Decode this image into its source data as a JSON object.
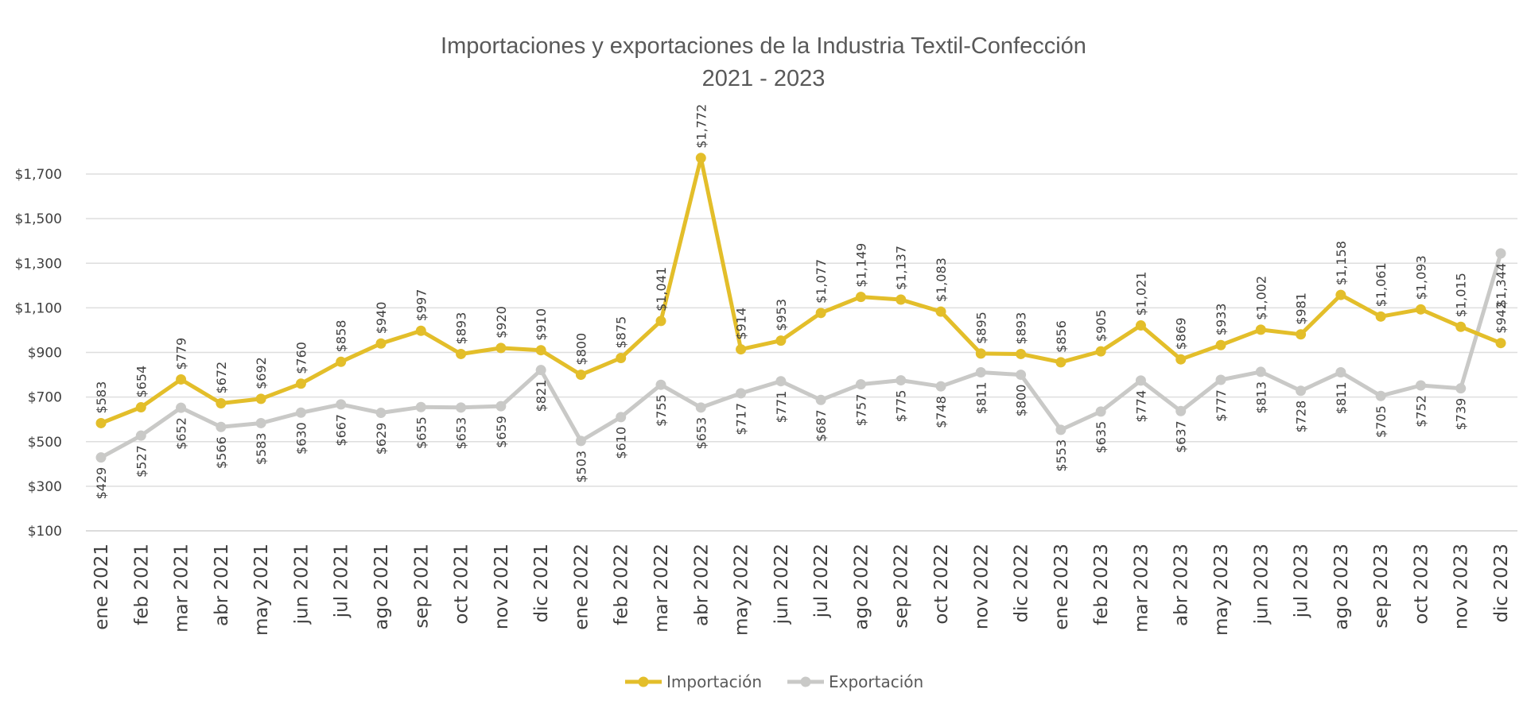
{
  "chart_data": {
    "type": "line",
    "title": "Importaciones y exportaciones de la Industria Textil-Confección",
    "subtitle": "2021 - 2023",
    "xlabel": "",
    "ylabel": "",
    "ylim": [
      100,
      1900
    ],
    "yticks": [
      "$100",
      "$300",
      "$500",
      "$700",
      "$900",
      "$1,100",
      "$1,300",
      "$1,500",
      "$1,700"
    ],
    "ytick_values": [
      100,
      300,
      500,
      700,
      900,
      1100,
      1300,
      1500,
      1700
    ],
    "grid": true,
    "legend_position": "bottom",
    "categories": [
      "ene 2021",
      "feb 2021",
      "mar 2021",
      "abr 2021",
      "may 2021",
      "jun 2021",
      "jul 2021",
      "ago 2021",
      "sep 2021",
      "oct 2021",
      "nov 2021",
      "dic 2021",
      "ene 2022",
      "feb 2022",
      "mar 2022",
      "abr 2022",
      "may 2022",
      "jun 2022",
      "jul 2022",
      "ago 2022",
      "sep 2022",
      "oct 2022",
      "nov 2022",
      "dic 2022",
      "ene 2023",
      "feb 2023",
      "mar 2023",
      "abr 2023",
      "may 2023",
      "jun 2023",
      "jul 2023",
      "ago 2023",
      "sep 2023",
      "oct 2023",
      "nov 2023",
      "dic 2023"
    ],
    "series": [
      {
        "name": "Importación",
        "color": "#E3BE2A",
        "label_position": "above",
        "values": [
          583,
          654,
          779,
          672,
          692,
          760,
          858,
          940,
          997,
          893,
          920,
          910,
          800,
          875,
          1041,
          1772,
          914,
          953,
          1077,
          1149,
          1137,
          1083,
          895,
          893,
          856,
          905,
          1021,
          869,
          933,
          1002,
          981,
          1158,
          1061,
          1093,
          1015,
          942
        ],
        "labels": [
          "$583",
          "$654",
          "$779",
          "$672",
          "$692",
          "$760",
          "$858",
          "$940",
          "$997",
          "$893",
          "$920",
          "$910",
          "$800",
          "$875",
          "$1,041",
          "$1,772",
          "$914",
          "$953",
          "$1,077",
          "$1,149",
          "$1,137",
          "$1,083",
          "$895",
          "$893",
          "$856",
          "$905",
          "$1,021",
          "$869",
          "$933",
          "$1,002",
          "$981",
          "$1,158",
          "$1,061",
          "$1,093",
          "$1,015",
          "$942"
        ]
      },
      {
        "name": "Exportación",
        "color": "#C9C9C7",
        "label_position": "below",
        "values": [
          429,
          527,
          652,
          566,
          583,
          630,
          667,
          629,
          655,
          653,
          659,
          821,
          503,
          610,
          755,
          653,
          717,
          771,
          687,
          757,
          775,
          748,
          811,
          800,
          553,
          635,
          774,
          637,
          777,
          813,
          728,
          811,
          705,
          752,
          739,
          1344
        ],
        "labels": [
          "$429",
          "$527",
          "$652",
          "$566",
          "$583",
          "$630",
          "$667",
          "$629",
          "$655",
          "$653",
          "$659",
          "$821",
          "$503",
          "$610",
          "$755",
          "$653",
          "$717",
          "$771",
          "$687",
          "$757",
          "$775",
          "$748",
          "$811",
          "$800",
          "$553",
          "$635",
          "$774",
          "$637",
          "$777",
          "$813",
          "$728",
          "$811",
          "$705",
          "$752",
          "$739",
          "$1,344"
        ]
      }
    ]
  }
}
